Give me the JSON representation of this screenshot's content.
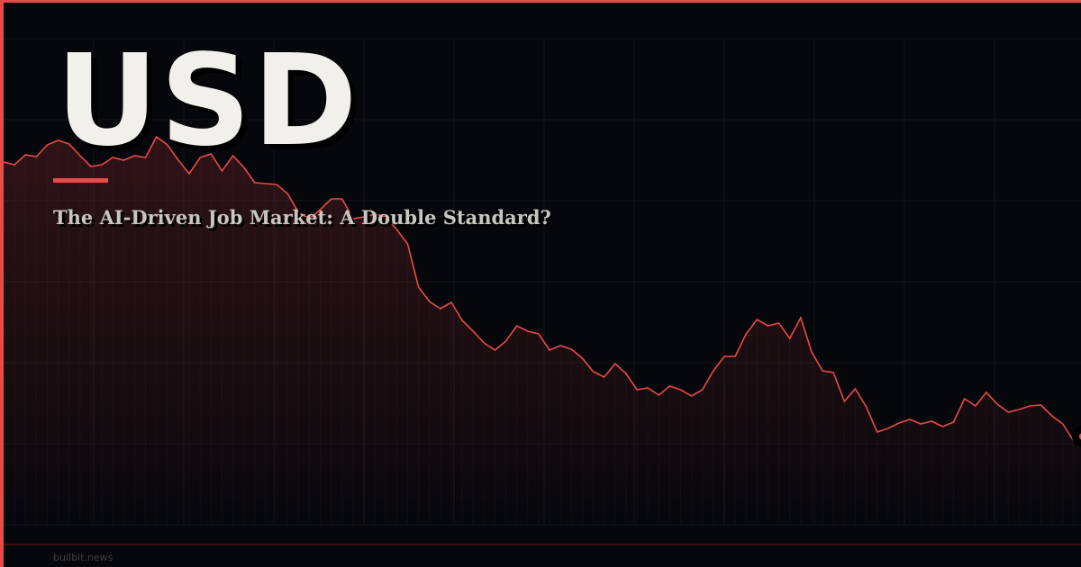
{
  "card": {
    "title": "USD",
    "subtitle": "The AI-Driven Job Market: A Double Standard?",
    "footer": "bullbit.news",
    "accent_color": "#e84a4a",
    "background_color": "#05070b"
  },
  "chart_data": {
    "type": "area",
    "title": "",
    "xlabel": "",
    "ylabel": "",
    "grid": true,
    "line_color": "#e84a4a",
    "values": [
      453,
      450,
      461,
      459,
      472,
      477,
      473,
      460,
      448,
      450,
      458,
      455,
      460,
      458,
      481,
      472,
      455,
      440,
      458,
      462,
      443,
      460,
      447,
      430,
      429,
      428,
      418,
      397,
      390,
      400,
      412,
      412,
      390,
      392,
      395,
      392,
      378,
      362,
      314,
      298,
      290,
      297,
      277,
      265,
      252,
      244,
      254,
      271,
      265,
      262,
      244,
      249,
      245,
      235,
      220,
      214,
      229,
      218,
      200,
      202,
      194,
      204,
      200,
      193,
      200,
      221,
      237,
      237,
      262,
      278,
      271,
      274,
      257,
      280,
      242,
      221,
      219,
      187,
      201,
      181,
      153,
      157,
      163,
      167,
      162,
      165,
      159,
      164,
      190,
      182,
      197,
      184,
      175,
      178,
      182,
      183,
      171,
      162,
      143,
      148
    ]
  }
}
